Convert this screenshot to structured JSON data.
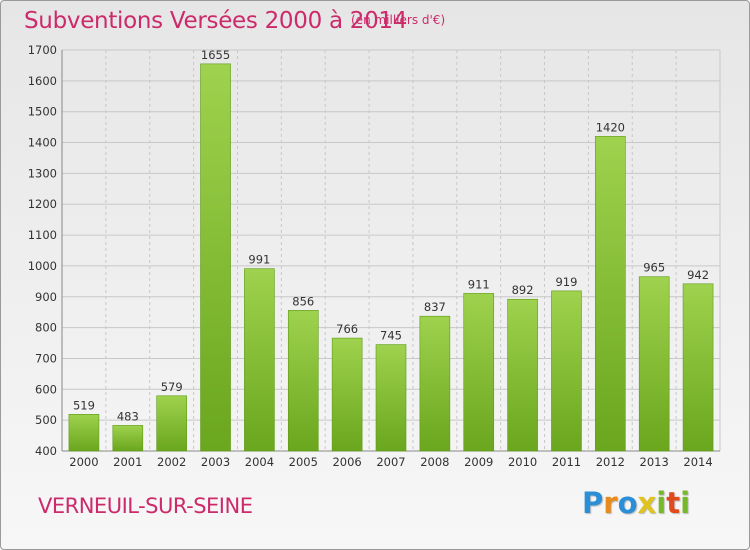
{
  "title": "Subventions Versées 2000 à 2014",
  "subtitle": "(en milliers d'€)",
  "place": "VERNEUIL-SUR-SEINE",
  "logo": {
    "text": "Proxiti",
    "letters": [
      {
        "ch": "P",
        "color": "#2a8fd6"
      },
      {
        "ch": "r",
        "color": "#e88a1c"
      },
      {
        "ch": "o",
        "color": "#2a8fd6"
      },
      {
        "ch": "x",
        "color": "#e0c31c"
      },
      {
        "ch": "i",
        "color": "#77b82a"
      },
      {
        "ch": "t",
        "color": "#e04a1c"
      },
      {
        "ch": "i",
        "color": "#77b82a"
      }
    ]
  },
  "colors": {
    "accent": "#cc2a6a",
    "bar_light": "#9fd24e",
    "bar_dark": "#6aa61e",
    "grid": "#c8c8c8",
    "axis_text": "#333333"
  },
  "chart_data": {
    "type": "bar",
    "categories": [
      "2000",
      "2001",
      "2002",
      "2003",
      "2004",
      "2005",
      "2006",
      "2007",
      "2008",
      "2009",
      "2010",
      "2011",
      "2012",
      "2013",
      "2014"
    ],
    "values": [
      519,
      483,
      579,
      1655,
      991,
      856,
      766,
      745,
      837,
      911,
      892,
      919,
      1420,
      965,
      942
    ],
    "ylim": [
      400,
      1700
    ],
    "yticks": [
      400,
      500,
      600,
      700,
      800,
      900,
      1000,
      1100,
      1200,
      1300,
      1400,
      1500,
      1600,
      1700
    ],
    "grid": true,
    "title": "Subventions Versées 2000 à 2014",
    "xlabel": "",
    "ylabel": ""
  }
}
